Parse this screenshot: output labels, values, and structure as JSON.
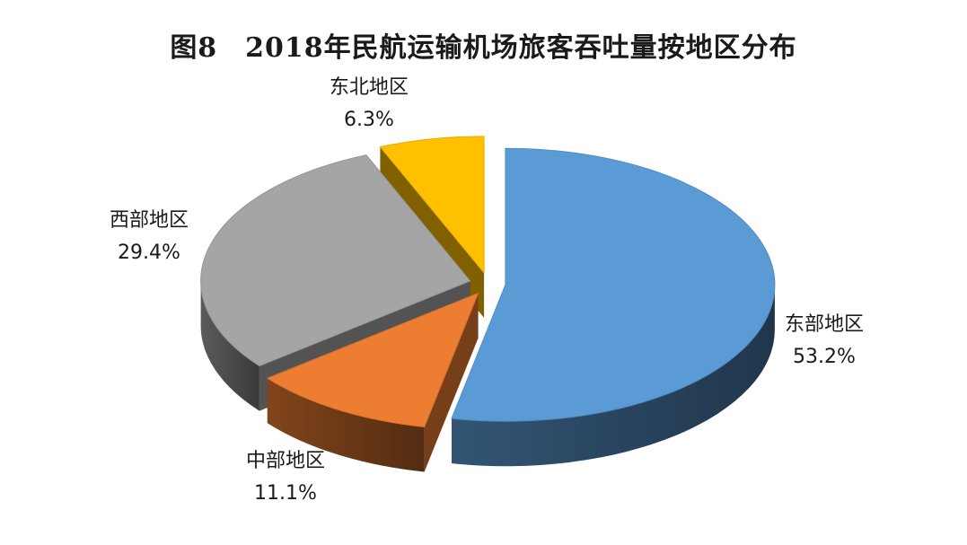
{
  "chart_data": {
    "type": "pie",
    "title": "图8　2018年民航运输机场旅客吞吐量按地区分布",
    "labels": [
      "东部地区",
      "中部地区",
      "西部地区",
      "东北地区"
    ],
    "values": [
      53.2,
      11.1,
      29.4,
      6.3
    ],
    "value_labels": [
      "53.2%",
      "11.1%",
      "29.4%",
      "6.3%"
    ],
    "colors": [
      "#5b9bd5",
      "#ed7d31",
      "#a5a5a5",
      "#ffc000"
    ],
    "exploded": true,
    "style": "3d",
    "legend": "none"
  }
}
